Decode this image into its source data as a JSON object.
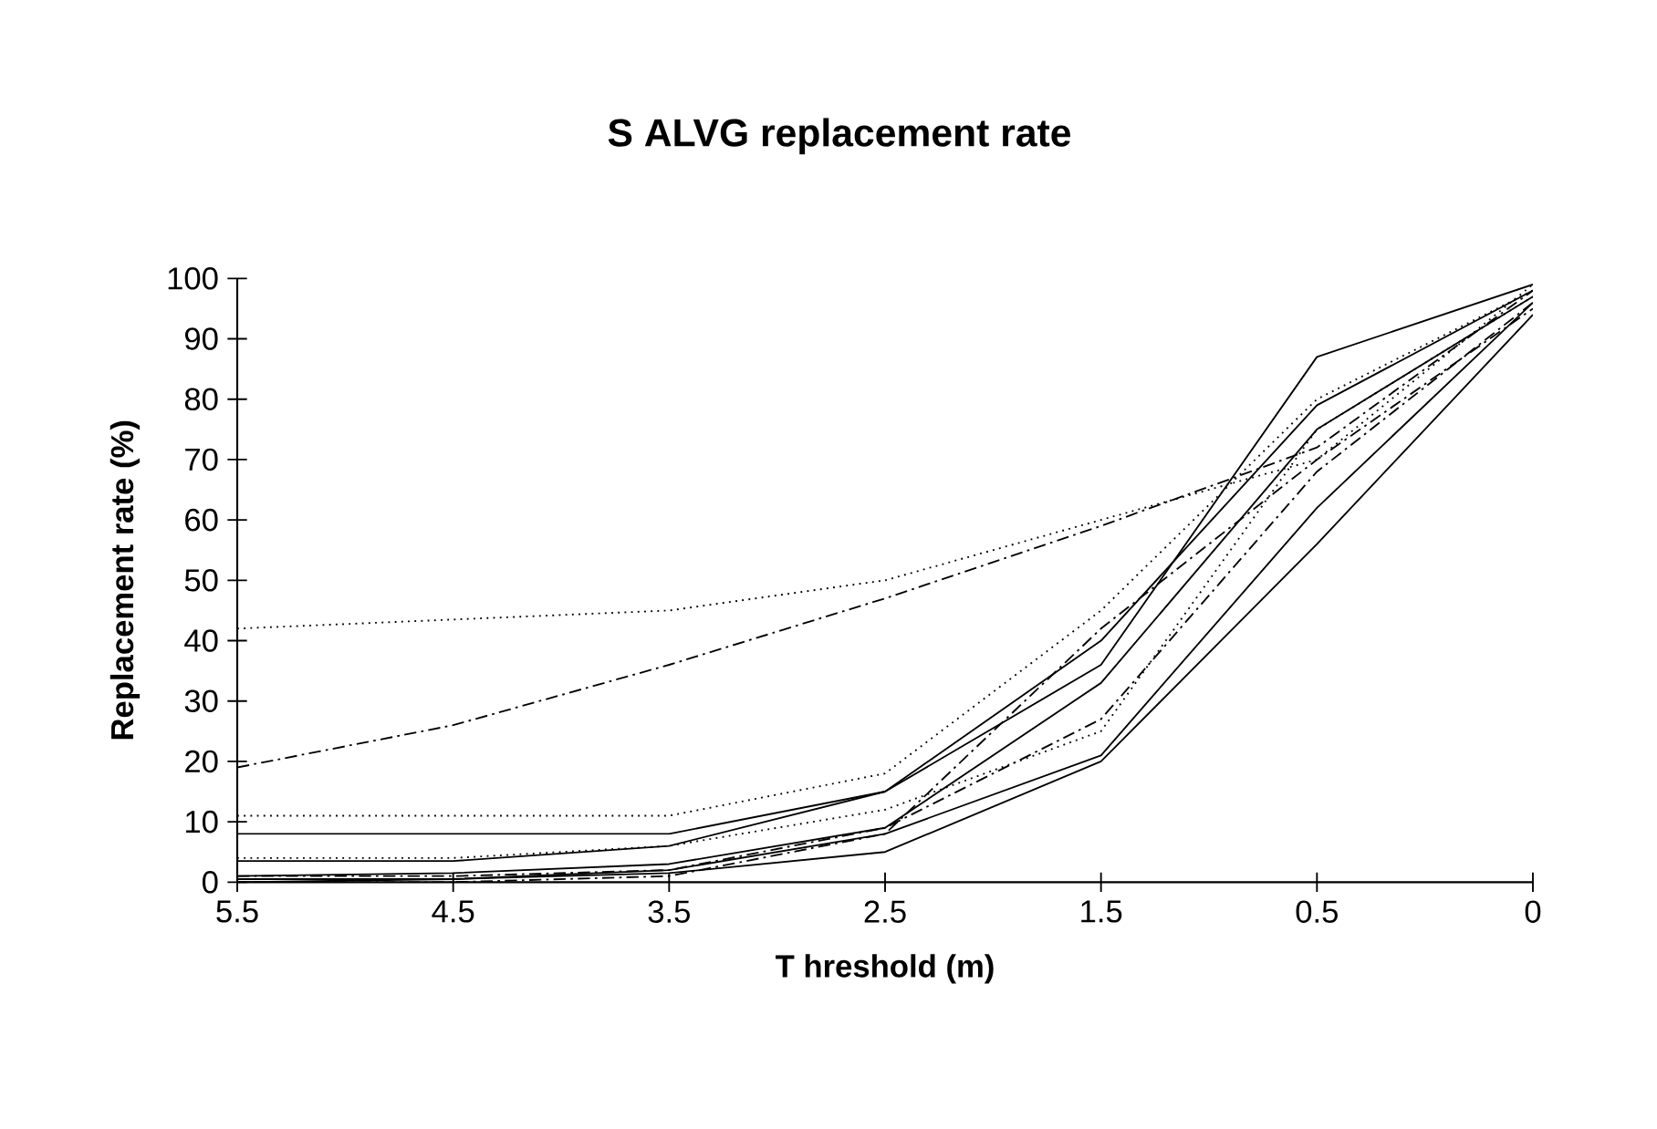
{
  "chart_data": {
    "type": "line",
    "title": "S ALVG replacement rate",
    "xlabel": "T hreshold (m)",
    "ylabel": "Replacement rate (%)",
    "categories": [
      "5.5",
      "4.5",
      "3.5",
      "2.5",
      "1.5",
      "0.5",
      "0"
    ],
    "ylim": [
      0,
      100
    ],
    "yticks": [
      0,
      10,
      20,
      30,
      40,
      50,
      60,
      70,
      80,
      90,
      100
    ],
    "grid": false,
    "marker": "none",
    "series": [
      {
        "color": "#000000",
        "line_style": "dotted",
        "values": [
          42,
          43.5,
          45,
          50,
          60,
          70,
          99
        ]
      },
      {
        "color": "#000000",
        "line_style": "dashed",
        "values": [
          19,
          26,
          36,
          47,
          59,
          72,
          98
        ]
      },
      {
        "color": "#000000",
        "line_style": "dotted",
        "values": [
          11,
          11,
          11,
          18,
          45,
          80,
          98
        ]
      },
      {
        "color": "#000000",
        "line_style": "solid",
        "values": [
          8,
          8,
          8,
          15,
          36,
          87,
          99
        ]
      },
      {
        "color": "#000000",
        "line_style": "solid",
        "values": [
          3.5,
          3.5,
          6,
          15,
          40,
          79,
          98
        ]
      },
      {
        "color": "#000000",
        "line_style": "dotted",
        "values": [
          4,
          4,
          6,
          12,
          25,
          75,
          97
        ]
      },
      {
        "color": "#000000",
        "line_style": "solid",
        "values": [
          1,
          1.5,
          3,
          9,
          33,
          75,
          97
        ]
      },
      {
        "color": "#000000",
        "line_style": "dashed",
        "values": [
          1,
          1,
          2,
          9,
          27,
          68,
          96
        ]
      },
      {
        "color": "#000000",
        "line_style": "solid",
        "values": [
          0.5,
          0.5,
          2,
          8,
          21,
          62,
          96
        ]
      },
      {
        "color": "#000000",
        "line_style": "solid",
        "values": [
          0,
          0.5,
          1.5,
          5,
          20,
          56,
          94
        ]
      },
      {
        "color": "#000000",
        "line_style": "dashed",
        "values": [
          0,
          0,
          1,
          8,
          42,
          70,
          95
        ]
      }
    ]
  }
}
